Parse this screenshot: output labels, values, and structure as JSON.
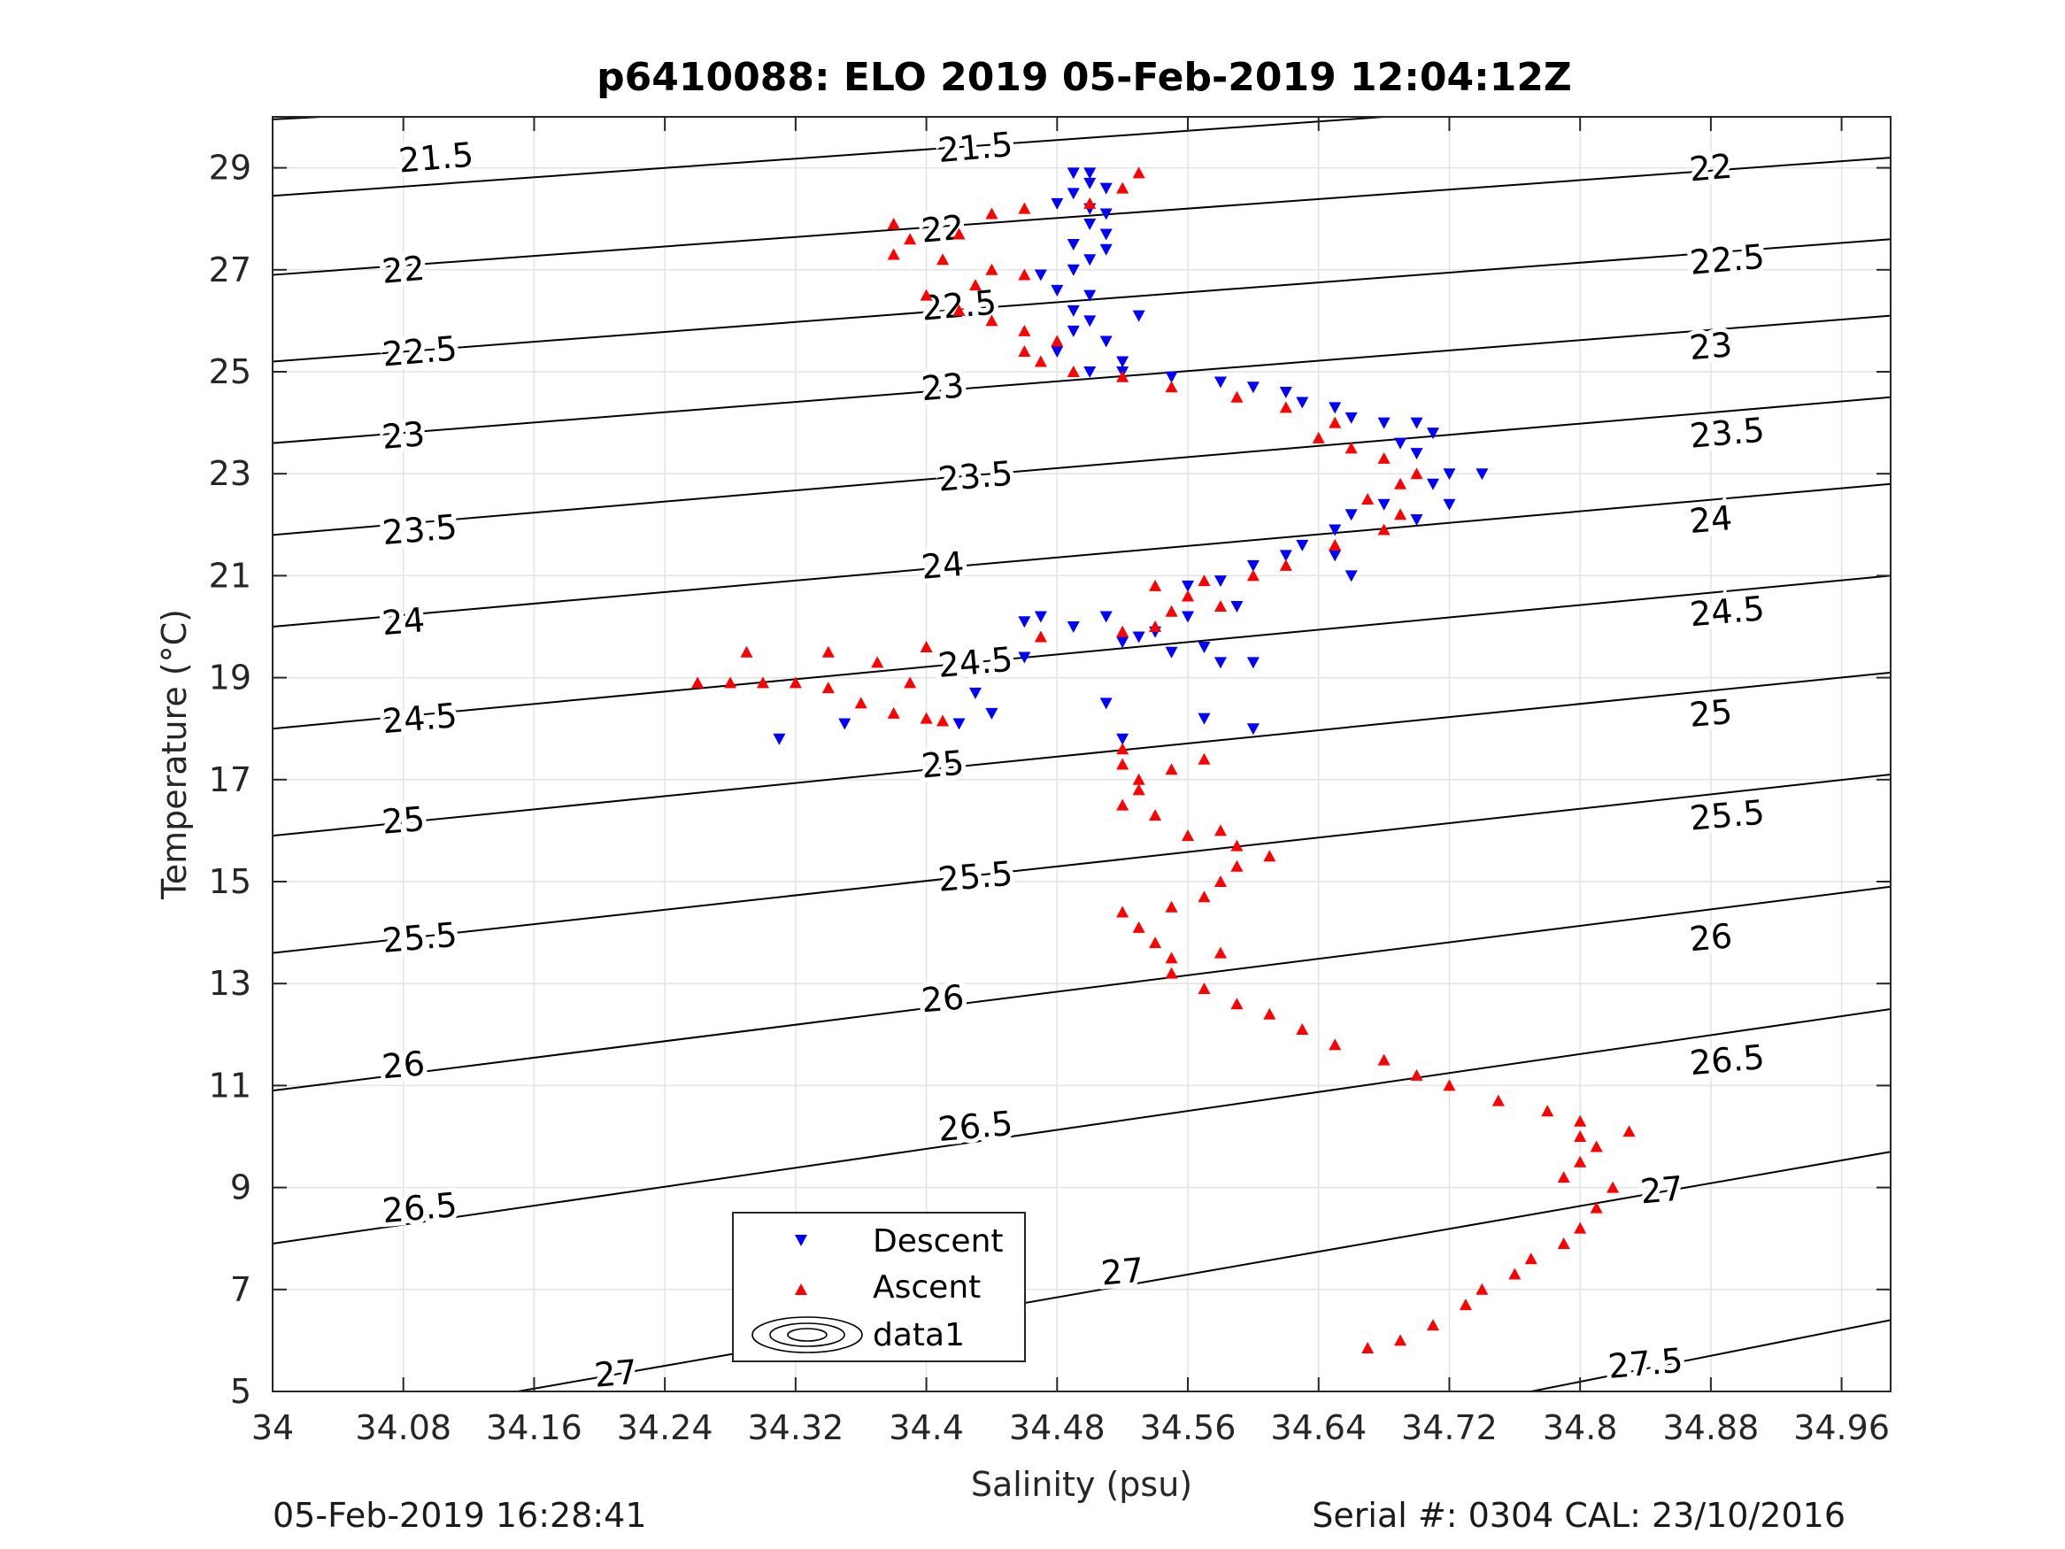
{
  "chart_data": {
    "type": "scatter",
    "title": "p6410088: ELO 2019 05-Feb-2019 12:04:12Z",
    "xlabel": "Salinity (psu)",
    "ylabel": "Temperature (°C)",
    "xlim": [
      34,
      34.99
    ],
    "ylim": [
      5,
      30
    ],
    "xticks": [
      "34",
      "34.08",
      "34.16",
      "34.24",
      "34.32",
      "34.4",
      "34.48",
      "34.56",
      "34.64",
      "34.72",
      "34.8",
      "34.88",
      "34.96"
    ],
    "yticks": [
      "5",
      "7",
      "9",
      "11",
      "13",
      "15",
      "17",
      "19",
      "21",
      "23",
      "25",
      "27",
      "29"
    ],
    "grid": true,
    "legend_position": "bottom-center",
    "legend": [
      {
        "label": "Descent",
        "marker": "triangle-down",
        "color": "#0000ff"
      },
      {
        "label": "Ascent",
        "marker": "triangle-up",
        "color": "#ff0000"
      },
      {
        "label": "data1",
        "marker": "contour"
      }
    ],
    "contours": {
      "levels": [
        "21.5",
        "22",
        "22.5",
        "23",
        "23.5",
        "24",
        "24.5",
        "25",
        "25.5",
        "26",
        "26.5",
        "27",
        "27.5"
      ],
      "lines": [
        {
          "level": "21.5",
          "x": [
            34,
            34.03
          ],
          "y": [
            29.95,
            30.0
          ]
        },
        {
          "level": "21.5",
          "x": [
            34,
            34.68
          ],
          "y": [
            28.45,
            30.0
          ]
        },
        {
          "level": "22",
          "x": [
            34,
            34.99
          ],
          "y": [
            26.9,
            29.2
          ]
        },
        {
          "level": "22.5",
          "x": [
            34,
            34.99
          ],
          "y": [
            25.2,
            27.6
          ]
        },
        {
          "level": "23",
          "x": [
            34,
            34.99
          ],
          "y": [
            23.6,
            26.1
          ]
        },
        {
          "level": "23.5",
          "x": [
            34,
            34.99
          ],
          "y": [
            21.8,
            24.5
          ]
        },
        {
          "level": "24",
          "x": [
            34,
            34.99
          ],
          "y": [
            20.0,
            22.8
          ]
        },
        {
          "level": "24.5",
          "x": [
            34,
            34.99
          ],
          "y": [
            18.0,
            21.0
          ]
        },
        {
          "level": "25",
          "x": [
            34,
            34.99
          ],
          "y": [
            15.9,
            19.1
          ]
        },
        {
          "level": "25.5",
          "x": [
            34,
            34.99
          ],
          "y": [
            13.6,
            17.1
          ]
        },
        {
          "level": "26",
          "x": [
            34,
            34.99
          ],
          "y": [
            10.9,
            14.9
          ]
        },
        {
          "level": "26.5",
          "x": [
            34,
            34.99
          ],
          "y": [
            7.9,
            12.5
          ]
        },
        {
          "level": "27",
          "x": [
            34.15,
            34.99
          ],
          "y": [
            5.0,
            9.7
          ]
        },
        {
          "level": "27.5",
          "x": [
            34.77,
            34.99
          ],
          "y": [
            5.0,
            6.4
          ]
        }
      ],
      "labels": [
        {
          "text": "21.5",
          "x": 34.1,
          "y": 29.2
        },
        {
          "text": "21.5",
          "x": 34.43,
          "y": 29.4
        },
        {
          "text": "22",
          "x": 34.08,
          "y": 27.0
        },
        {
          "text": "22",
          "x": 34.41,
          "y": 27.8
        },
        {
          "text": "22",
          "x": 34.88,
          "y": 29.0
        },
        {
          "text": "22.5",
          "x": 34.09,
          "y": 25.4
        },
        {
          "text": "22.5",
          "x": 34.42,
          "y": 26.3
        },
        {
          "text": "22.5",
          "x": 34.89,
          "y": 27.2
        },
        {
          "text": "23",
          "x": 34.08,
          "y": 23.75
        },
        {
          "text": "23",
          "x": 34.41,
          "y": 24.7
        },
        {
          "text": "23",
          "x": 34.88,
          "y": 25.5
        },
        {
          "text": "23.5",
          "x": 34.09,
          "y": 21.9
        },
        {
          "text": "23.5",
          "x": 34.43,
          "y": 22.95
        },
        {
          "text": "23.5",
          "x": 34.89,
          "y": 23.8
        },
        {
          "text": "24",
          "x": 34.08,
          "y": 20.1
        },
        {
          "text": "24",
          "x": 34.41,
          "y": 21.2
        },
        {
          "text": "24",
          "x": 34.88,
          "y": 22.1
        },
        {
          "text": "24.5",
          "x": 34.09,
          "y": 18.2
        },
        {
          "text": "24.5",
          "x": 34.43,
          "y": 19.3
        },
        {
          "text": "24.5",
          "x": 34.89,
          "y": 20.3
        },
        {
          "text": "25",
          "x": 34.08,
          "y": 16.2
        },
        {
          "text": "25",
          "x": 34.41,
          "y": 17.3
        },
        {
          "text": "25",
          "x": 34.88,
          "y": 18.3
        },
        {
          "text": "25.5",
          "x": 34.09,
          "y": 13.9
        },
        {
          "text": "25.5",
          "x": 34.43,
          "y": 15.1
        },
        {
          "text": "25.5",
          "x": 34.89,
          "y": 16.3
        },
        {
          "text": "26",
          "x": 34.08,
          "y": 11.4
        },
        {
          "text": "26",
          "x": 34.41,
          "y": 12.7
        },
        {
          "text": "26",
          "x": 34.88,
          "y": 13.9
        },
        {
          "text": "26.5",
          "x": 34.09,
          "y": 8.6
        },
        {
          "text": "26.5",
          "x": 34.43,
          "y": 10.2
        },
        {
          "text": "26.5",
          "x": 34.89,
          "y": 11.5
        },
        {
          "text": "27",
          "x": 34.21,
          "y": 5.35
        },
        {
          "text": "27",
          "x": 34.52,
          "y": 7.35
        },
        {
          "text": "27",
          "x": 34.85,
          "y": 8.95
        },
        {
          "text": "27.5",
          "x": 34.84,
          "y": 5.55
        }
      ]
    },
    "series": [
      {
        "name": "Descent",
        "marker": "triangle-down",
        "color": "#0000ff",
        "points": [
          [
            34.49,
            28.9
          ],
          [
            34.5,
            28.9
          ],
          [
            34.5,
            28.7
          ],
          [
            34.51,
            28.6
          ],
          [
            34.49,
            28.5
          ],
          [
            34.48,
            28.3
          ],
          [
            34.5,
            28.2
          ],
          [
            34.51,
            28.1
          ],
          [
            34.5,
            27.9
          ],
          [
            34.51,
            27.7
          ],
          [
            34.49,
            27.5
          ],
          [
            34.51,
            27.4
          ],
          [
            34.5,
            27.2
          ],
          [
            34.49,
            27.0
          ],
          [
            34.47,
            26.9
          ],
          [
            34.48,
            26.6
          ],
          [
            34.5,
            26.5
          ],
          [
            34.49,
            26.2
          ],
          [
            34.5,
            26.0
          ],
          [
            34.53,
            26.1
          ],
          [
            34.49,
            25.8
          ],
          [
            34.51,
            25.6
          ],
          [
            34.48,
            25.4
          ],
          [
            34.52,
            25.2
          ],
          [
            34.5,
            25.0
          ],
          [
            34.52,
            25.0
          ],
          [
            34.55,
            24.9
          ],
          [
            34.58,
            24.8
          ],
          [
            34.6,
            24.7
          ],
          [
            34.62,
            24.6
          ],
          [
            34.63,
            24.4
          ],
          [
            34.65,
            24.3
          ],
          [
            34.66,
            24.1
          ],
          [
            34.68,
            24.0
          ],
          [
            34.7,
            24.0
          ],
          [
            34.71,
            23.8
          ],
          [
            34.69,
            23.6
          ],
          [
            34.7,
            23.4
          ],
          [
            34.72,
            23.0
          ],
          [
            34.74,
            23.0
          ],
          [
            34.71,
            22.8
          ],
          [
            34.72,
            22.4
          ],
          [
            34.7,
            22.1
          ],
          [
            34.68,
            22.4
          ],
          [
            34.66,
            22.2
          ],
          [
            34.65,
            21.9
          ],
          [
            34.63,
            21.6
          ],
          [
            34.62,
            21.4
          ],
          [
            34.65,
            21.4
          ],
          [
            34.66,
            21.0
          ],
          [
            34.6,
            21.2
          ],
          [
            34.58,
            20.9
          ],
          [
            34.56,
            20.8
          ],
          [
            34.59,
            20.4
          ],
          [
            34.56,
            20.2
          ],
          [
            34.54,
            19.9
          ],
          [
            34.55,
            19.5
          ],
          [
            34.57,
            19.6
          ],
          [
            34.52,
            19.7
          ],
          [
            34.47,
            20.2
          ],
          [
            34.46,
            20.1
          ],
          [
            34.49,
            20.0
          ],
          [
            34.51,
            20.2
          ],
          [
            34.53,
            19.8
          ],
          [
            34.46,
            19.4
          ],
          [
            34.43,
            18.7
          ],
          [
            34.44,
            18.3
          ],
          [
            34.51,
            18.5
          ],
          [
            34.58,
            19.3
          ],
          [
            34.6,
            19.3
          ],
          [
            34.57,
            18.2
          ],
          [
            34.6,
            18.0
          ],
          [
            34.52,
            17.8
          ],
          [
            34.31,
            17.8
          ],
          [
            34.35,
            18.1
          ],
          [
            34.42,
            18.1
          ]
        ]
      },
      {
        "name": "Ascent",
        "marker": "triangle-up",
        "color": "#ff0000",
        "points": [
          [
            34.67,
            5.85
          ],
          [
            34.69,
            6.0
          ],
          [
            34.71,
            6.3
          ],
          [
            34.73,
            6.7
          ],
          [
            34.74,
            7.0
          ],
          [
            34.76,
            7.3
          ],
          [
            34.77,
            7.6
          ],
          [
            34.79,
            7.9
          ],
          [
            34.8,
            8.2
          ],
          [
            34.81,
            8.6
          ],
          [
            34.82,
            9.0
          ],
          [
            34.79,
            9.2
          ],
          [
            34.8,
            9.5
          ],
          [
            34.81,
            9.8
          ],
          [
            34.8,
            10.0
          ],
          [
            34.83,
            10.1
          ],
          [
            34.8,
            10.3
          ],
          [
            34.78,
            10.5
          ],
          [
            34.75,
            10.7
          ],
          [
            34.72,
            11.0
          ],
          [
            34.7,
            11.2
          ],
          [
            34.68,
            11.5
          ],
          [
            34.65,
            11.8
          ],
          [
            34.63,
            12.1
          ],
          [
            34.61,
            12.4
          ],
          [
            34.59,
            12.6
          ],
          [
            34.57,
            12.9
          ],
          [
            34.55,
            13.2
          ],
          [
            34.55,
            13.5
          ],
          [
            34.58,
            13.6
          ],
          [
            34.54,
            13.8
          ],
          [
            34.53,
            14.1
          ],
          [
            34.52,
            14.4
          ],
          [
            34.55,
            14.5
          ],
          [
            34.57,
            14.7
          ],
          [
            34.58,
            15.0
          ],
          [
            34.59,
            15.3
          ],
          [
            34.61,
            15.5
          ],
          [
            34.59,
            15.7
          ],
          [
            34.56,
            15.9
          ],
          [
            34.58,
            16.0
          ],
          [
            34.54,
            16.3
          ],
          [
            34.52,
            16.5
          ],
          [
            34.53,
            16.8
          ],
          [
            34.55,
            17.2
          ],
          [
            34.57,
            17.4
          ],
          [
            34.53,
            17.0
          ],
          [
            34.52,
            17.3
          ],
          [
            34.52,
            17.6
          ],
          [
            34.4,
            18.2
          ],
          [
            34.41,
            18.15
          ],
          [
            34.38,
            18.3
          ],
          [
            34.36,
            18.5
          ],
          [
            34.34,
            18.8
          ],
          [
            34.32,
            18.9
          ],
          [
            34.3,
            18.9
          ],
          [
            34.28,
            18.9
          ],
          [
            34.26,
            18.9
          ],
          [
            34.29,
            19.5
          ],
          [
            34.34,
            19.5
          ],
          [
            34.37,
            19.3
          ],
          [
            34.39,
            18.9
          ],
          [
            34.4,
            19.6
          ],
          [
            34.47,
            19.8
          ],
          [
            34.52,
            19.9
          ],
          [
            34.54,
            20.0
          ],
          [
            34.55,
            20.3
          ],
          [
            34.58,
            20.4
          ],
          [
            34.56,
            20.6
          ],
          [
            34.54,
            20.8
          ],
          [
            34.57,
            20.9
          ],
          [
            34.6,
            21.0
          ],
          [
            34.62,
            21.2
          ],
          [
            34.65,
            21.6
          ],
          [
            34.68,
            21.9
          ],
          [
            34.69,
            22.2
          ],
          [
            34.67,
            22.5
          ],
          [
            34.69,
            22.8
          ],
          [
            34.7,
            23.0
          ],
          [
            34.68,
            23.3
          ],
          [
            34.66,
            23.5
          ],
          [
            34.64,
            23.7
          ],
          [
            34.65,
            24.0
          ],
          [
            34.62,
            24.3
          ],
          [
            34.59,
            24.5
          ],
          [
            34.55,
            24.7
          ],
          [
            34.52,
            24.9
          ],
          [
            34.49,
            25.0
          ],
          [
            34.47,
            25.2
          ],
          [
            34.46,
            25.4
          ],
          [
            34.48,
            25.6
          ],
          [
            34.46,
            25.8
          ],
          [
            34.44,
            26.0
          ],
          [
            34.42,
            26.2
          ],
          [
            34.4,
            26.5
          ],
          [
            34.43,
            26.7
          ],
          [
            34.46,
            26.9
          ],
          [
            34.44,
            27.0
          ],
          [
            34.41,
            27.2
          ],
          [
            34.38,
            27.3
          ],
          [
            34.39,
            27.6
          ],
          [
            34.42,
            27.7
          ],
          [
            34.38,
            27.9
          ],
          [
            34.44,
            28.1
          ],
          [
            34.46,
            28.2
          ],
          [
            34.5,
            28.3
          ],
          [
            34.52,
            28.6
          ],
          [
            34.53,
            28.9
          ]
        ]
      }
    ]
  },
  "footer": {
    "left": "05-Feb-2019 16:28:41",
    "right": "Serial #: 0304  CAL: 23/10/2016"
  }
}
